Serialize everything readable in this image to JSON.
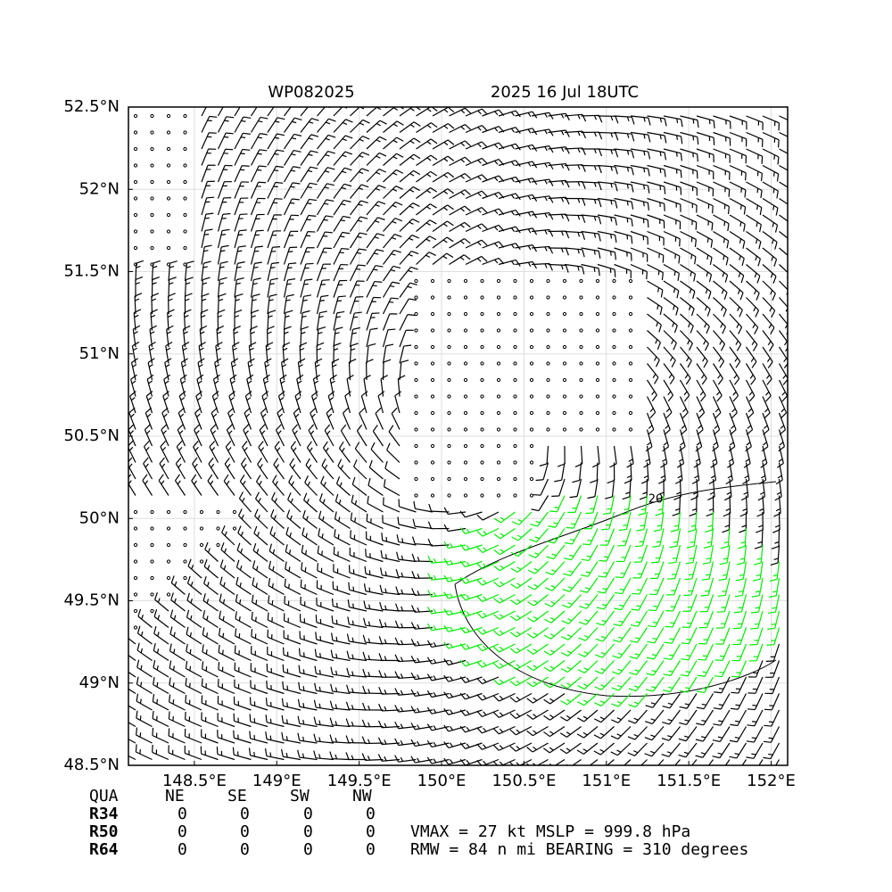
{
  "chart_data": {
    "type": "barbs",
    "title": "WP082025",
    "subtitle": "2025 16 Jul 18UTC",
    "xlim": [
      148.1,
      152.1
    ],
    "ylim": [
      48.5,
      52.5
    ],
    "xticks": [
      {
        "value": 148.5,
        "label": "148.5°E"
      },
      {
        "value": 149,
        "label": "149°E"
      },
      {
        "value": 149.5,
        "label": "149.5°E"
      },
      {
        "value": 150,
        "label": "150°E"
      },
      {
        "value": 150.5,
        "label": "150.5°E"
      },
      {
        "value": 151,
        "label": "151°E"
      },
      {
        "value": 151.5,
        "label": "151.5°E"
      },
      {
        "value": 152,
        "label": "152°E"
      }
    ],
    "yticks": [
      {
        "value": 48.5,
        "label": "48.5°N"
      },
      {
        "value": 49,
        "label": "49°N"
      },
      {
        "value": 49.5,
        "label": "49.5°N"
      },
      {
        "value": 50,
        "label": "50°N"
      },
      {
        "value": 50.5,
        "label": "50.5°N"
      },
      {
        "value": 51,
        "label": "51°N"
      },
      {
        "value": 51.5,
        "label": "51.5°N"
      },
      {
        "value": 52,
        "label": "52°N"
      },
      {
        "value": 52.5,
        "label": "52.5°N"
      }
    ],
    "grid": true,
    "contour_label": "20",
    "barb_color": "#000000",
    "strong_barb_color": "#00ee00"
  },
  "table": {
    "header": [
      "QUA",
      "NE",
      "SE",
      "SW",
      "NW"
    ],
    "rows": [
      [
        "R34",
        0,
        0,
        0,
        0
      ],
      [
        "R50",
        0,
        0,
        0,
        0
      ],
      [
        "R64",
        0,
        0,
        0,
        0
      ]
    ]
  },
  "info": [
    "VMAX =  27 kt MSLP = 999.8 hPa",
    "RMW =  84 n mi BEARING = 310 degrees"
  ]
}
